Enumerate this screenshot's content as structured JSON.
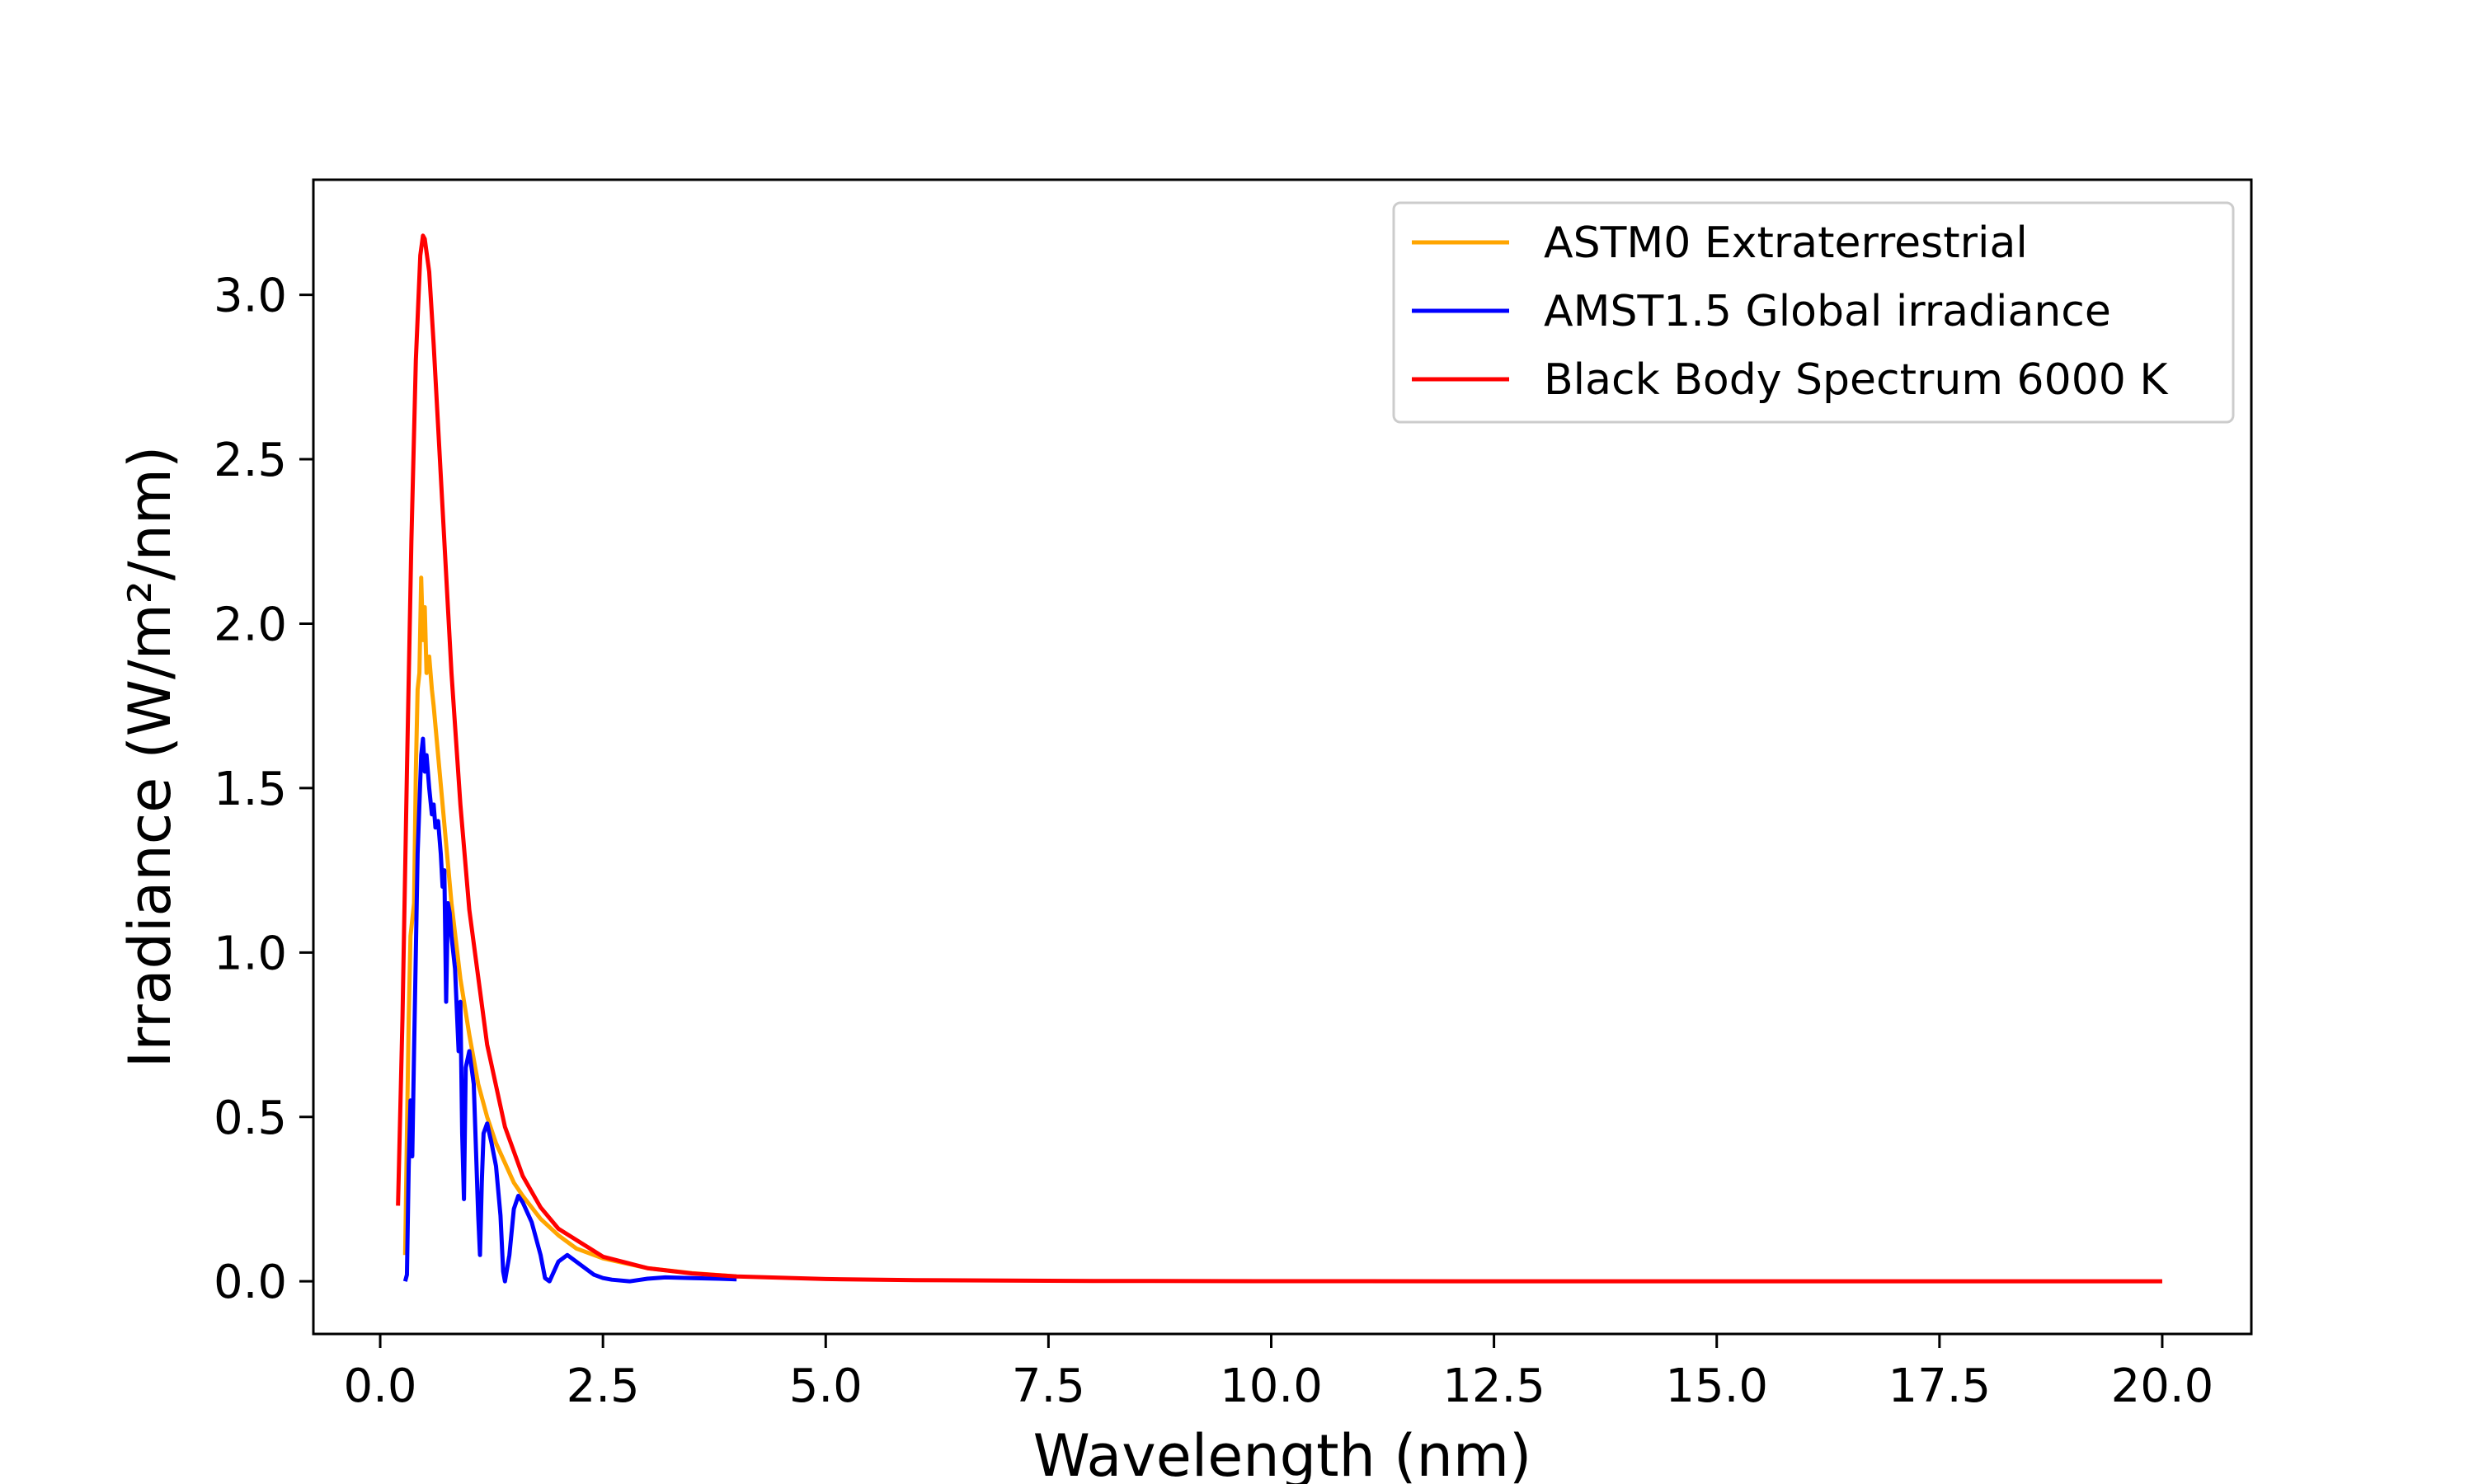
{
  "chart_data": {
    "type": "line",
    "xlabel": "Wavelength (nm)",
    "ylabel": "Irradiance (W/m²/nm)",
    "xlim": [
      -0.75,
      21.0
    ],
    "ylim": [
      -0.16,
      3.35
    ],
    "xticks": [
      0.0,
      2.5,
      5.0,
      7.5,
      10.0,
      12.5,
      15.0,
      17.5,
      20.0
    ],
    "xtick_labels": [
      "0.0",
      "2.5",
      "5.0",
      "7.5",
      "10.0",
      "12.5",
      "15.0",
      "17.5",
      "20.0"
    ],
    "yticks": [
      0.0,
      0.5,
      1.0,
      1.5,
      2.0,
      2.5,
      3.0
    ],
    "ytick_labels": [
      "0.0",
      "0.5",
      "1.0",
      "1.5",
      "2.0",
      "2.5",
      "3.0"
    ],
    "grid": false,
    "legend_position": "top-right",
    "series": [
      {
        "name": "ASTM0 Extraterrestrial",
        "color": "#ffa500",
        "x": [
          0.28,
          0.3,
          0.32,
          0.34,
          0.36,
          0.38,
          0.4,
          0.42,
          0.44,
          0.46,
          0.48,
          0.5,
          0.52,
          0.55,
          0.58,
          0.6,
          0.65,
          0.7,
          0.75,
          0.8,
          0.9,
          1.0,
          1.1,
          1.2,
          1.3,
          1.4,
          1.5,
          1.6,
          1.8,
          2.0,
          2.2,
          2.5,
          3.0,
          3.5,
          4.0
        ],
        "y": [
          0.08,
          0.45,
          0.8,
          1.05,
          1.1,
          1.15,
          1.55,
          1.8,
          1.85,
          2.14,
          1.95,
          2.05,
          1.85,
          1.9,
          1.8,
          1.75,
          1.6,
          1.45,
          1.3,
          1.15,
          0.92,
          0.75,
          0.6,
          0.5,
          0.42,
          0.36,
          0.3,
          0.26,
          0.19,
          0.14,
          0.1,
          0.07,
          0.04,
          0.025,
          0.015
        ]
      },
      {
        "name": "AMST1.5 Global irradiance",
        "color": "#0000ff",
        "x": [
          0.28,
          0.3,
          0.32,
          0.34,
          0.36,
          0.38,
          0.4,
          0.42,
          0.44,
          0.46,
          0.48,
          0.5,
          0.52,
          0.55,
          0.58,
          0.6,
          0.62,
          0.65,
          0.68,
          0.7,
          0.72,
          0.74,
          0.76,
          0.78,
          0.8,
          0.84,
          0.88,
          0.9,
          0.92,
          0.94,
          0.96,
          1.0,
          1.05,
          1.1,
          1.12,
          1.14,
          1.16,
          1.2,
          1.25,
          1.3,
          1.35,
          1.38,
          1.4,
          1.45,
          1.5,
          1.55,
          1.6,
          1.7,
          1.8,
          1.85,
          1.9,
          2.0,
          2.1,
          2.2,
          2.3,
          2.4,
          2.5,
          2.6,
          2.8,
          3.0,
          3.2,
          3.5,
          3.8,
          4.0
        ],
        "y": [
          0.0,
          0.02,
          0.35,
          0.55,
          0.38,
          0.7,
          1.0,
          1.3,
          1.45,
          1.6,
          1.65,
          1.55,
          1.6,
          1.5,
          1.42,
          1.45,
          1.38,
          1.4,
          1.3,
          1.2,
          1.25,
          0.85,
          1.15,
          1.12,
          1.05,
          0.95,
          0.7,
          0.85,
          0.45,
          0.25,
          0.65,
          0.7,
          0.6,
          0.2,
          0.08,
          0.3,
          0.45,
          0.48,
          0.42,
          0.35,
          0.2,
          0.03,
          0.0,
          0.08,
          0.22,
          0.26,
          0.24,
          0.18,
          0.08,
          0.01,
          0.0,
          0.06,
          0.08,
          0.06,
          0.04,
          0.02,
          0.01,
          0.005,
          0.0,
          0.008,
          0.012,
          0.01,
          0.008,
          0.006
        ]
      },
      {
        "name": "Black Body Spectrum 6000 K",
        "color": "#ff0000",
        "x": [
          0.2,
          0.25,
          0.3,
          0.35,
          0.4,
          0.45,
          0.48,
          0.5,
          0.55,
          0.6,
          0.7,
          0.8,
          0.9,
          1.0,
          1.2,
          1.4,
          1.6,
          1.8,
          2.0,
          2.5,
          3.0,
          3.5,
          4.0,
          5.0,
          6.0,
          8.0,
          10.0,
          12.5,
          15.0,
          17.5,
          20.0
        ],
        "y": [
          0.23,
          0.8,
          1.55,
          2.25,
          2.8,
          3.12,
          3.18,
          3.17,
          3.07,
          2.85,
          2.35,
          1.85,
          1.45,
          1.13,
          0.72,
          0.47,
          0.32,
          0.225,
          0.16,
          0.075,
          0.04,
          0.024,
          0.015,
          0.007,
          0.0035,
          0.0012,
          0.0005,
          0.0002,
          0.0001,
          5e-05,
          3e-05
        ]
      }
    ]
  }
}
